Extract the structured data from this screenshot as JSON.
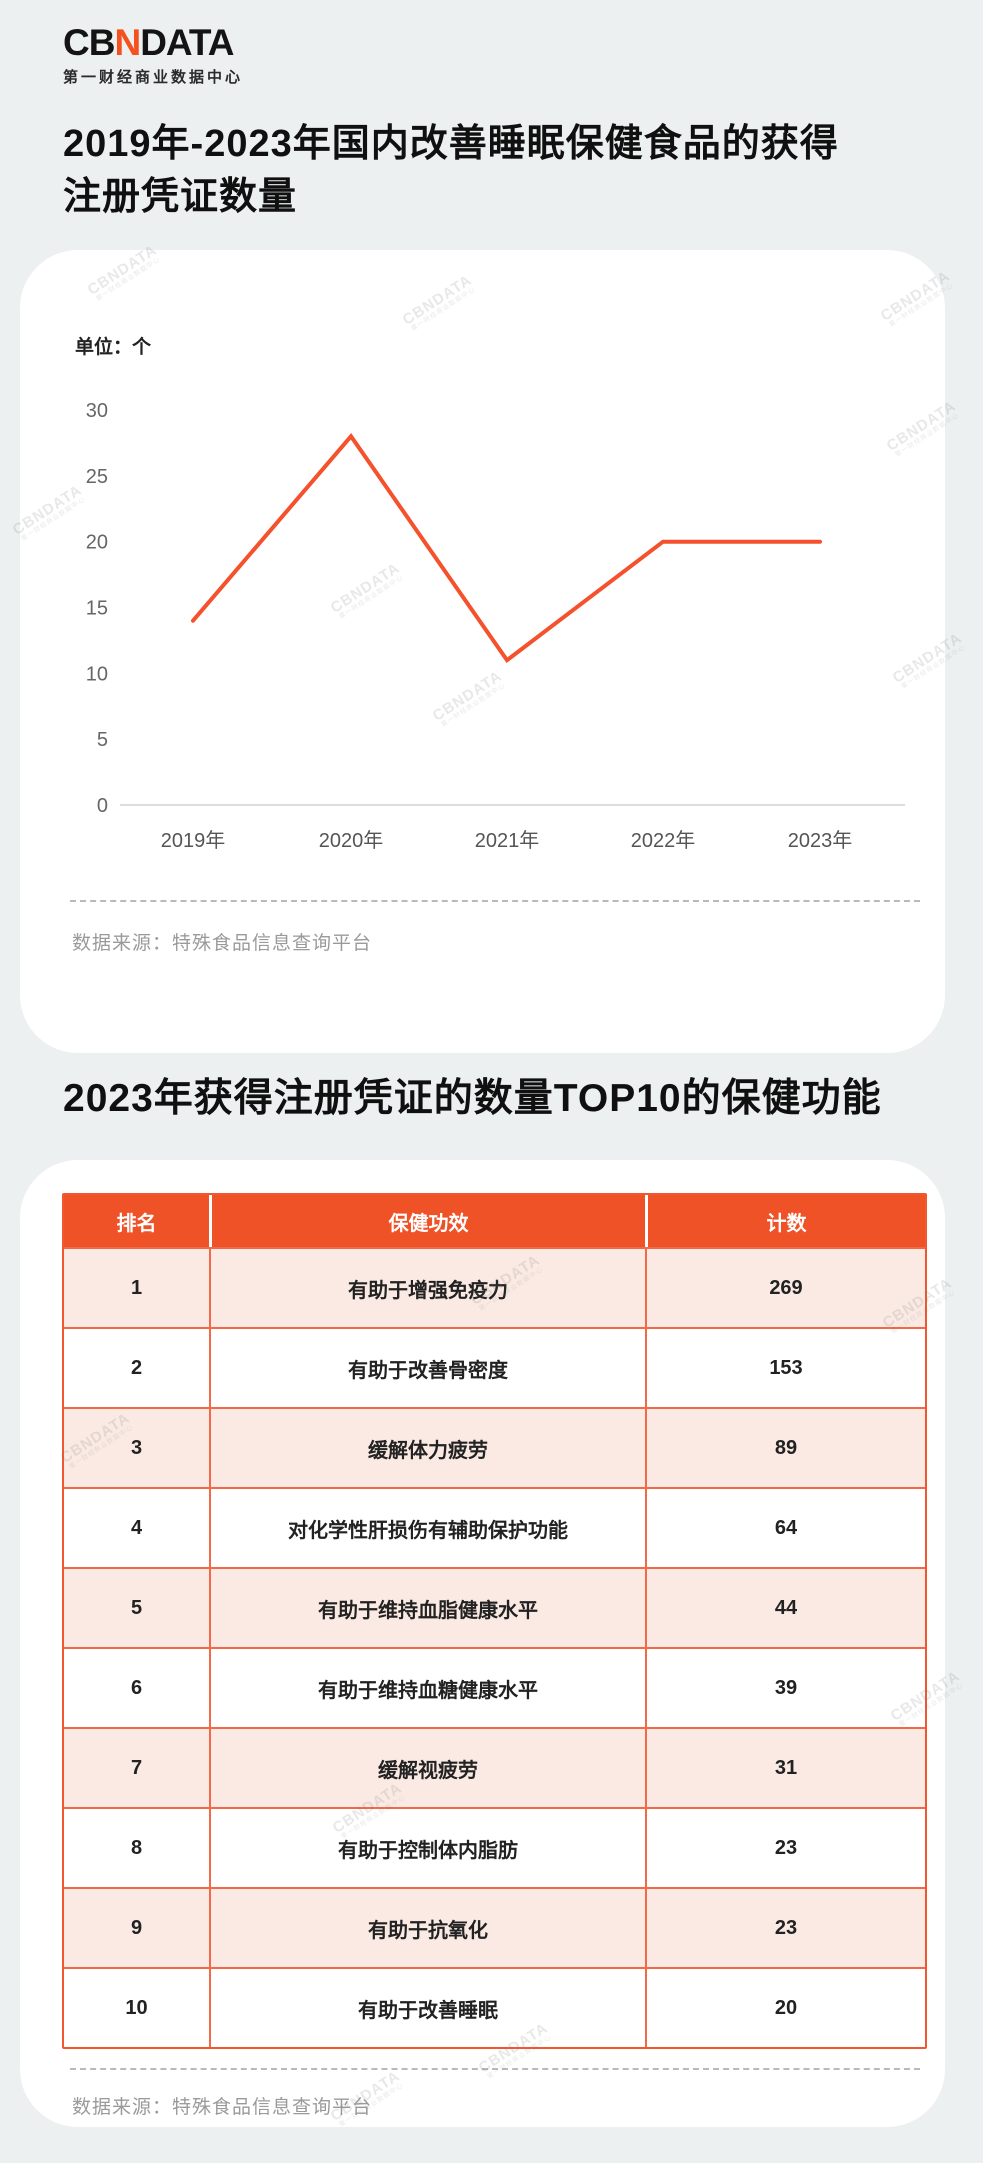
{
  "brand": {
    "logo_cb": "CB",
    "logo_n": "N",
    "logo_data": "DATA",
    "subtitle": "第一财经商业数据中心"
  },
  "section1": {
    "title_line1": "2019年-2023年国内改善睡眠保健食品的获得",
    "title_line2": "注册凭证数量",
    "unit_label": "单位：个",
    "source": "数据来源：特殊食品信息查询平台"
  },
  "chart_data": {
    "type": "line",
    "title": "2019年-2023年国内改善睡眠保健食品的获得注册凭证数量",
    "categories": [
      "2019年",
      "2020年",
      "2021年",
      "2022年",
      "2023年"
    ],
    "values": [
      14,
      28,
      11,
      20,
      20
    ],
    "unit": "个",
    "ylabel": "单位：个",
    "y_ticks": [
      30,
      25,
      20,
      15,
      10,
      5,
      0
    ],
    "ylim": [
      0,
      30
    ],
    "grid": false,
    "legend": "none",
    "line_color": "#F4512C",
    "axis_color": "#DDDDDD"
  },
  "section2": {
    "title": "2023年获得注册凭证的数量TOP10的保健功能",
    "source": "数据来源：特殊食品信息查询平台",
    "table": {
      "headers": [
        "排名",
        "保健功效",
        "计数"
      ],
      "rows": [
        [
          "1",
          "有助于增强免疫力",
          "269"
        ],
        [
          "2",
          "有助于改善骨密度",
          "153"
        ],
        [
          "3",
          "缓解体力疲劳",
          "89"
        ],
        [
          "4",
          "对化学性肝损伤有辅助保护功能",
          "64"
        ],
        [
          "5",
          "有助于维持血脂健康水平",
          "44"
        ],
        [
          "6",
          "有助于维持血糖健康水平",
          "39"
        ],
        [
          "7",
          "缓解视疲劳",
          "31"
        ],
        [
          "8",
          "有助于控制体内脂肪",
          "23"
        ],
        [
          "9",
          "有助于抗氧化",
          "23"
        ],
        [
          "10",
          "有助于改善睡眠",
          "20"
        ]
      ]
    }
  },
  "watermark": {
    "line1": "CBNDATA",
    "line2": "第一财经商业数据中心"
  },
  "colors": {
    "background": "#ECF0F1",
    "card": "#FFFFFF",
    "accent_orange": "#EF5226",
    "chart_line": "#F4512C",
    "row_pink": "#FBEAE4",
    "table_border": "#F26A45",
    "source_text": "#9A9A9A"
  }
}
